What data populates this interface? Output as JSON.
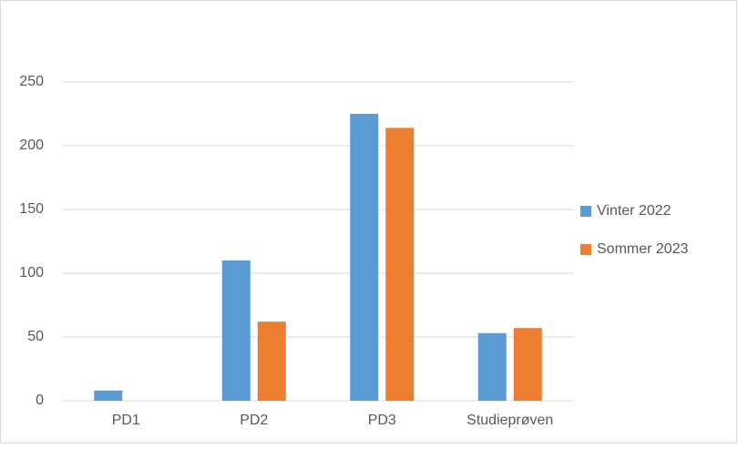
{
  "chart_data": {
    "type": "bar",
    "categories": [
      "PD1",
      "PD2",
      "PD3",
      "Studieprøven"
    ],
    "series": [
      {
        "name": "Vinter 2022",
        "color": "#5b9bd5",
        "values": [
          8,
          110,
          225,
          53
        ]
      },
      {
        "name": "Sommer 2023",
        "color": "#ed7d31",
        "values": [
          0,
          62,
          214,
          57
        ]
      }
    ],
    "ylim": [
      0,
      250
    ],
    "yticks": [
      0,
      50,
      100,
      150,
      200,
      250
    ],
    "grid": true,
    "legend": "right"
  }
}
